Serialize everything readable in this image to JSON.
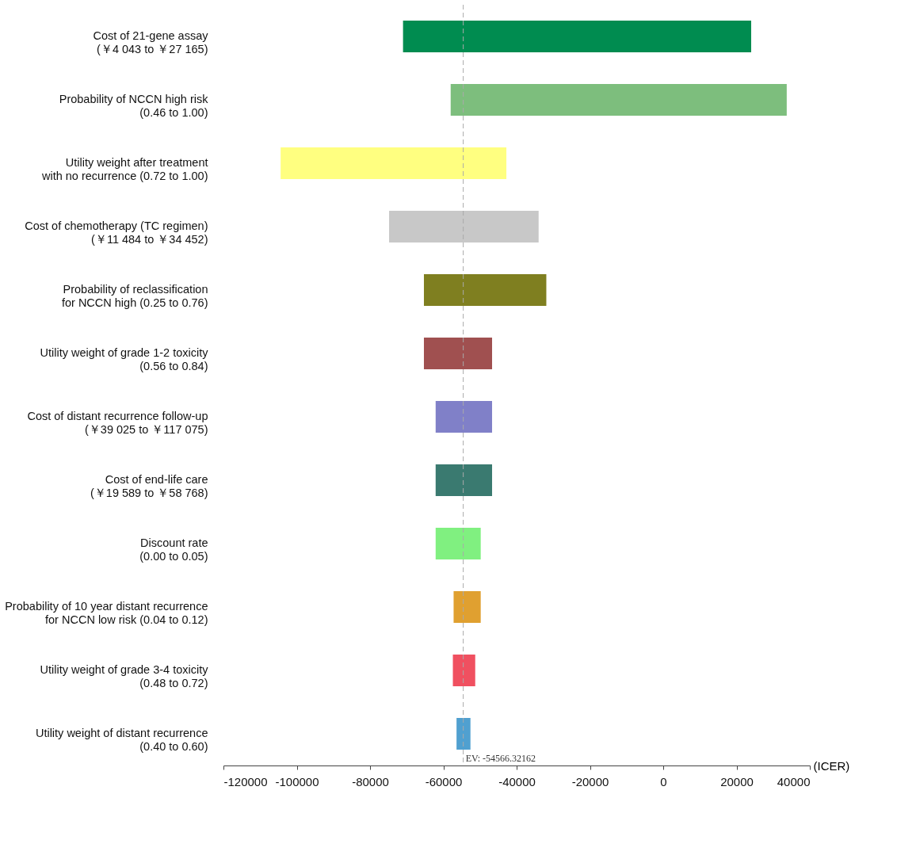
{
  "chart_data": {
    "type": "bar",
    "orientation": "horizontal",
    "xlabel": "(ICER)",
    "categories": [
      "Cost of 21-gene assay\n(￥4 043 to ￥27 165)",
      "Probability of NCCN high risk\n(0.46 to 1.00)",
      "Utility weight after treatment\nwith no recurrence (0.72 to 1.00)",
      "Cost of chemotherapy (TC regimen)\n(￥11 484 to ￥34 452)",
      "Probability of reclassification\nfor NCCN high (0.25 to 0.76)",
      "Utility weight of grade 1-2 toxicity\n(0.56 to 0.84)",
      "Cost of distant recurrence follow-up\n(￥39 025 to ￥117 075)",
      "Cost of end-life care\n(￥19 589 to ￥58 768)",
      "Discount rate\n(0.00 to 0.05)",
      "Probability of 10 year distant recurrence\nfor NCCN low risk (0.04 to 0.12)",
      "Utility weight of grade 3-4 toxicity\n(0.48 to 0.72)",
      "Utility weight of distant recurrence\n(0.40 to 0.60)"
    ],
    "base": [
      -71000,
      -58000,
      -104400,
      -74800,
      -65300,
      -65300,
      -62100,
      -62100,
      -62100,
      -57200,
      -57400,
      -56400
    ],
    "values": [
      95000,
      91700,
      61600,
      40800,
      33400,
      18600,
      15400,
      15400,
      12300,
      7400,
      6100,
      3800
    ],
    "colors": [
      "#008c50",
      "#7dbe7d",
      "#ffff80",
      "#c8c8c8",
      "#7f7f20",
      "#a05050",
      "#8080c8",
      "#3a7a70",
      "#80f080",
      "#e0a030",
      "#f05060",
      "#50a0d0"
    ],
    "xlim": [
      -120000,
      40000
    ],
    "xticks": [
      -120000,
      -100000,
      -80000,
      -60000,
      -40000,
      -20000,
      0,
      20000,
      40000
    ],
    "ref_lines": [
      {
        "axis": "x",
        "value": -54566.32162,
        "label": "EV: -54566.32162",
        "color": "#aaaaaa",
        "line_style": "dashed"
      }
    ],
    "grid": false
  }
}
